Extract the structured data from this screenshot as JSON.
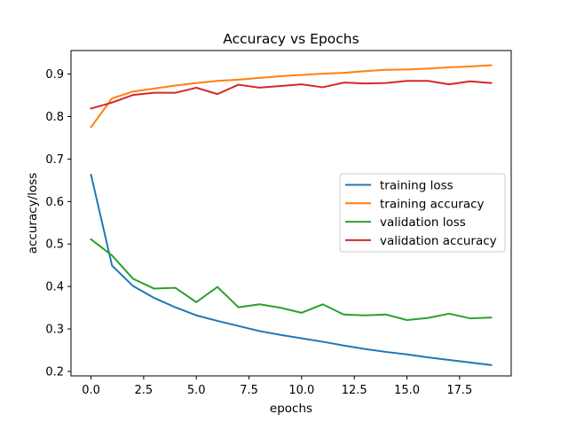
{
  "chart_data": {
    "type": "line",
    "title": "Accuracy vs Epochs",
    "xlabel": "epochs",
    "ylabel": "accuracy/loss",
    "xlim": [
      -0.95,
      19.95
    ],
    "ylim": [
      0.1895,
      0.9555
    ],
    "xticks": [
      0.0,
      2.5,
      5.0,
      7.5,
      10.0,
      12.5,
      15.0,
      17.5
    ],
    "xtick_labels": [
      "0.0",
      "2.5",
      "5.0",
      "7.5",
      "10.0",
      "12.5",
      "15.0",
      "17.5"
    ],
    "yticks": [
      0.2,
      0.3,
      0.4,
      0.5,
      0.6,
      0.7,
      0.8,
      0.9
    ],
    "ytick_labels": [
      "0.2",
      "0.3",
      "0.4",
      "0.5",
      "0.6",
      "0.7",
      "0.8",
      "0.9"
    ],
    "grid": false,
    "legend_position": "center-right",
    "x": [
      0,
      1,
      2,
      3,
      4,
      5,
      6,
      7,
      8,
      9,
      10,
      11,
      12,
      13,
      14,
      15,
      16,
      17,
      18,
      19
    ],
    "series": [
      {
        "name": "training loss",
        "color": "#1f77b4",
        "values": [
          0.663,
          0.449,
          0.401,
          0.373,
          0.351,
          0.332,
          0.319,
          0.307,
          0.295,
          0.286,
          0.278,
          0.27,
          0.261,
          0.253,
          0.246,
          0.24,
          0.233,
          0.227,
          0.221,
          0.215
        ]
      },
      {
        "name": "training accuracy",
        "color": "#ff7f0e",
        "values": [
          0.775,
          0.843,
          0.859,
          0.866,
          0.873,
          0.879,
          0.884,
          0.887,
          0.891,
          0.895,
          0.898,
          0.901,
          0.903,
          0.907,
          0.91,
          0.911,
          0.913,
          0.916,
          0.918,
          0.921
        ]
      },
      {
        "name": "validation loss",
        "color": "#2ca02c",
        "values": [
          0.511,
          0.473,
          0.418,
          0.395,
          0.397,
          0.363,
          0.399,
          0.351,
          0.358,
          0.35,
          0.338,
          0.358,
          0.334,
          0.332,
          0.334,
          0.321,
          0.326,
          0.336,
          0.325,
          0.327
        ]
      },
      {
        "name": "validation accuracy",
        "color": "#d62728",
        "values": [
          0.819,
          0.833,
          0.851,
          0.856,
          0.856,
          0.868,
          0.853,
          0.875,
          0.868,
          0.872,
          0.876,
          0.869,
          0.88,
          0.878,
          0.879,
          0.884,
          0.884,
          0.876,
          0.883,
          0.879
        ]
      }
    ]
  }
}
